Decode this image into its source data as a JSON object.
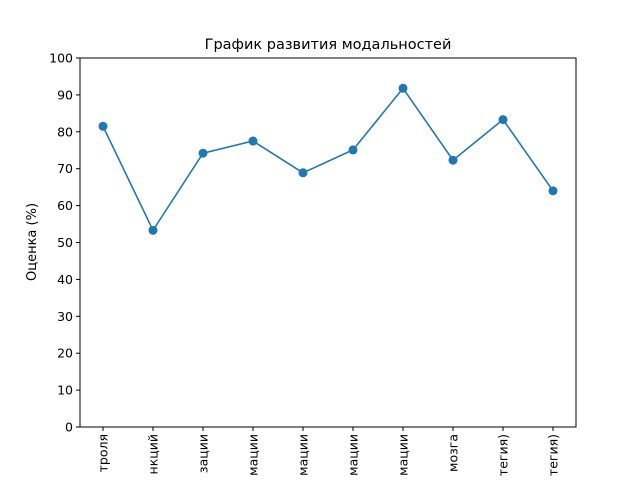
{
  "chart_data": {
    "type": "line",
    "title": "График развития модальностей",
    "xlabel": "",
    "ylabel": "Оценка (%)",
    "ylim": [
      0,
      100
    ],
    "yticks": [
      "0",
      "10",
      "20",
      "30",
      "40",
      "50",
      "60",
      "70",
      "80",
      "90",
      "100"
    ],
    "categories": [
      "троля",
      "нкций",
      "зации",
      "мации",
      "мации",
      "мации",
      "мации",
      "мозга",
      "тегия)",
      "тегия)"
    ],
    "series": [
      {
        "values": [
          81.5,
          53.3,
          74.2,
          77.5,
          68.9,
          75.1,
          91.8,
          72.3,
          83.3,
          64.0
        ],
        "color": "#1f77b4",
        "marker": "circle"
      }
    ],
    "grid": false,
    "legend": "none"
  }
}
